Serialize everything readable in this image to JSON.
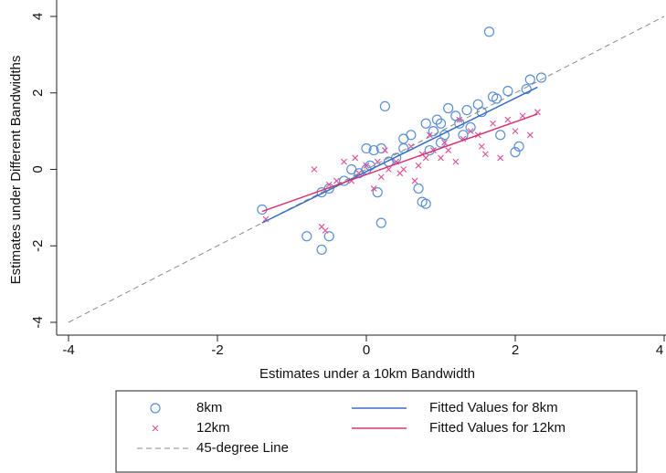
{
  "chart_data": {
    "type": "scatter",
    "x_label": "Estimates under a 10km Bandwidth",
    "y_label": "Estimates under Different Bandwidths",
    "xlim": [
      -4,
      4
    ],
    "ylim": [
      -4,
      4
    ],
    "xticks": [
      -4,
      -2,
      0,
      2,
      4
    ],
    "yticks": [
      -4,
      -2,
      0,
      2,
      4
    ],
    "series": [
      {
        "name": "8km",
        "type": "scatter",
        "marker": "circle",
        "color": "#5b8fd6",
        "x": [
          -1.4,
          -0.8,
          -0.6,
          -0.5,
          -0.6,
          -0.3,
          -0.2,
          0,
          0.1,
          0.2,
          0.25,
          0.2,
          0.15,
          0.3,
          0.4,
          0.5,
          0.6,
          0.7,
          0.75,
          0.8,
          0.8,
          0.9,
          0.95,
          1.0,
          1.05,
          1.1,
          1.2,
          1.3,
          1.35,
          1.5,
          1.55,
          1.65,
          1.7,
          1.75,
          1.9,
          2.0,
          2.05,
          2.15,
          2.2,
          2.35,
          1.8,
          1.4,
          0.0,
          -0.1,
          0.05,
          0.5,
          1.0,
          0.85,
          -0.5,
          1.25
        ],
        "values": [
          -1.05,
          -1.75,
          -2.1,
          -1.75,
          -0.6,
          -0.3,
          0.0,
          0.55,
          0.5,
          0.55,
          1.65,
          -1.4,
          -0.6,
          0.2,
          0.3,
          0.55,
          0.9,
          -0.5,
          -0.85,
          -0.9,
          1.2,
          1.0,
          1.3,
          1.2,
          0.9,
          1.6,
          1.4,
          0.9,
          1.55,
          1.7,
          1.5,
          3.6,
          1.9,
          1.85,
          2.05,
          0.45,
          0.6,
          2.1,
          2.35,
          2.4,
          0.9,
          1.1,
          0.0,
          -0.1,
          0.1,
          0.8,
          0.7,
          0.5,
          -0.5,
          1.2
        ]
      },
      {
        "name": "12km",
        "type": "scatter",
        "marker": "x",
        "color": "#e0559a",
        "x": [
          -1.35,
          -0.6,
          -0.55,
          -0.7,
          -0.5,
          -0.4,
          -0.3,
          -0.2,
          -0.1,
          0.0,
          0.1,
          0.2,
          0.25,
          0.3,
          0.4,
          0.5,
          0.6,
          0.7,
          0.75,
          0.8,
          0.9,
          1.0,
          1.05,
          1.1,
          1.2,
          1.3,
          1.4,
          1.5,
          1.6,
          1.7,
          1.8,
          1.9,
          2.0,
          2.1,
          2.2,
          2.3,
          0.45,
          0.85,
          1.25,
          -0.15,
          0.65,
          1.55,
          0.15
        ],
        "values": [
          -1.3,
          -1.5,
          -1.6,
          0.0,
          -0.4,
          -0.3,
          0.2,
          -0.3,
          -0.1,
          0.1,
          -0.5,
          -0.2,
          0.5,
          0.0,
          0.2,
          0.0,
          0.6,
          0.1,
          0.4,
          0.3,
          0.5,
          0.3,
          0.7,
          0.5,
          0.2,
          0.8,
          1.0,
          0.9,
          0.4,
          1.2,
          0.3,
          1.3,
          1.0,
          1.4,
          0.9,
          1.5,
          -0.1,
          0.9,
          1.3,
          0.3,
          -0.3,
          0.6,
          0.2
        ]
      },
      {
        "name": "45-degree Line",
        "type": "line",
        "dashed": true,
        "color": "#8a8a8a",
        "x": [
          -4,
          4
        ],
        "values": [
          -4,
          4
        ]
      },
      {
        "name": "Fitted Values for 8km",
        "type": "line",
        "dashed": false,
        "color": "#3a6fc8",
        "x": [
          -1.4,
          2.3
        ],
        "values": [
          -1.4,
          2.15
        ]
      },
      {
        "name": "Fitted Values for 12km",
        "type": "line",
        "dashed": false,
        "color": "#d93470",
        "x": [
          -1.4,
          2.3
        ],
        "values": [
          -1.1,
          1.45
        ]
      }
    ]
  }
}
